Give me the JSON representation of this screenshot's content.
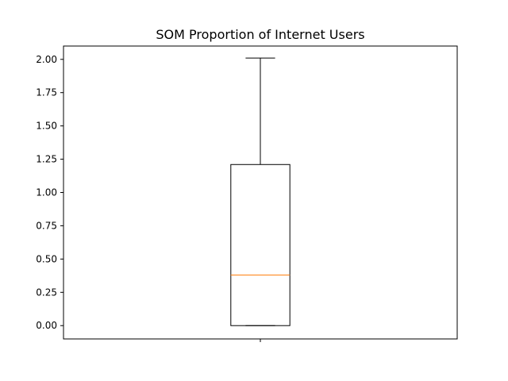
{
  "chart_data": {
    "type": "box",
    "title": "SOM Proportion of Internet Users",
    "xlabel": "",
    "ylabel": "",
    "ylim": [
      -0.1,
      2.1
    ],
    "yticks": [
      0.0,
      0.25,
      0.5,
      0.75,
      1.0,
      1.25,
      1.5,
      1.75,
      2.0
    ],
    "ytick_labels": [
      "0.00",
      "0.25",
      "0.50",
      "0.75",
      "1.00",
      "1.25",
      "1.50",
      "1.75",
      "2.00"
    ],
    "grid": false,
    "boxes": [
      {
        "whisker_low": 0.0,
        "q1": 0.0,
        "median": 0.38,
        "q3": 1.21,
        "whisker_high": 2.01
      }
    ],
    "colors": {
      "box": "#000000",
      "median": "#ff7f0e"
    }
  }
}
